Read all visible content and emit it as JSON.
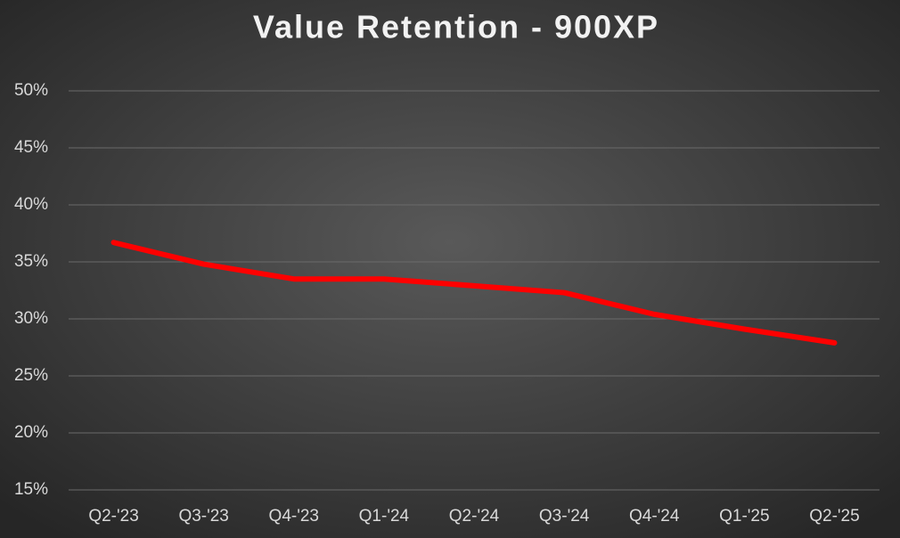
{
  "chart_data": {
    "type": "line",
    "title": "Value Retention - 900XP",
    "categories": [
      "Q2-'23",
      "Q3-'23",
      "Q4-'23",
      "Q1-'24",
      "Q2-'24",
      "Q3-'24",
      "Q4-'24",
      "Q1-'25",
      "Q2-'25"
    ],
    "series": [
      {
        "name": "900XP",
        "color": "#ff0000",
        "values": [
          36.7,
          34.8,
          33.5,
          33.5,
          32.9,
          32.3,
          30.4,
          29.1,
          27.9
        ]
      }
    ],
    "ylim": [
      15,
      50
    ],
    "yticks": [
      {
        "value": 15,
        "label": "15%"
      },
      {
        "value": 20,
        "label": "20%"
      },
      {
        "value": 25,
        "label": "25%"
      },
      {
        "value": 30,
        "label": "30%"
      },
      {
        "value": 35,
        "label": "35%"
      },
      {
        "value": 40,
        "label": "40%"
      },
      {
        "value": 45,
        "label": "45%"
      },
      {
        "value": 50,
        "label": "50%"
      }
    ],
    "grid": true
  }
}
